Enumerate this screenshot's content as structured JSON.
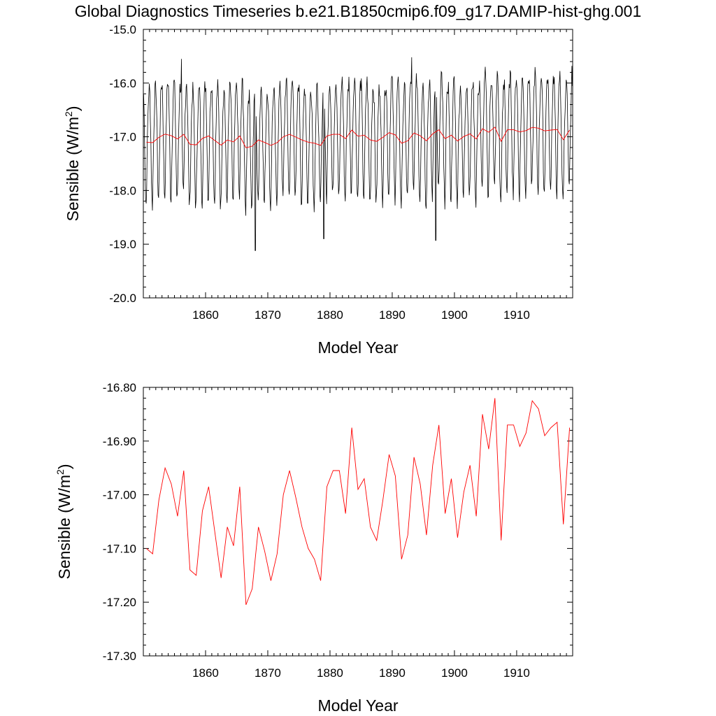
{
  "title": "Global Diagnostics Timeseries b.e21.B1850cmip6.f09_g17.DAMIP-hist-ghg.001",
  "colors": {
    "monthly": "#000000",
    "annual": "#ff0000",
    "axes": "#000000"
  },
  "chart_data": [
    {
      "type": "line",
      "name": "monthly-and-annual",
      "xlabel": "Model Year",
      "ylabel": "Sensible (W/m",
      "ylabel_sup": "2",
      "ylabel_close": ")",
      "xlim": [
        1850,
        1919
      ],
      "ylim": [
        -20.0,
        -15.0
      ],
      "xticks": [
        1860,
        1870,
        1880,
        1890,
        1900,
        1910
      ],
      "xtick_labels": [
        "1860",
        "1870",
        "1880",
        "1890",
        "1900",
        "1910"
      ],
      "yticks": [
        -20.0,
        -19.0,
        -18.0,
        -17.0,
        -16.0,
        -15.0
      ],
      "ytick_labels": [
        "-20.0",
        "-19.0",
        "-18.0",
        "-17.0",
        "-16.0",
        "-15.0"
      ],
      "monthly_series": {
        "color": "#000000",
        "start_year": 1850,
        "monthly_pattern": [
          -16.35,
          -16.7,
          -17.25,
          -17.9,
          -18.35,
          -18.45,
          -18.0,
          -17.4,
          -16.9,
          -16.55,
          -16.3,
          -16.25
        ],
        "notable_extremes": [
          {
            "x": 1856.1,
            "y": -15.55
          },
          {
            "x": 1868.0,
            "y": -19.12
          },
          {
            "x": 1879.0,
            "y": -18.9
          },
          {
            "x": 1893.1,
            "y": -15.52
          },
          {
            "x": 1897.0,
            "y": -18.93
          },
          {
            "x": 1918.9,
            "y": -15.68
          }
        ]
      },
      "annual_series": {
        "color": "#ff0000",
        "x": [
          1850.5,
          1851.5,
          1852.5,
          1853.5,
          1854.5,
          1855.5,
          1856.5,
          1857.5,
          1858.5,
          1859.5,
          1860.5,
          1861.5,
          1862.5,
          1863.5,
          1864.5,
          1865.5,
          1866.5,
          1867.5,
          1868.5,
          1869.5,
          1870.5,
          1871.5,
          1872.5,
          1873.5,
          1874.5,
          1875.5,
          1876.5,
          1877.5,
          1878.5,
          1879.5,
          1880.5,
          1881.5,
          1882.5,
          1883.5,
          1884.5,
          1885.5,
          1886.5,
          1887.5,
          1888.5,
          1889.5,
          1890.5,
          1891.5,
          1892.5,
          1893.5,
          1894.5,
          1895.5,
          1896.5,
          1897.5,
          1898.5,
          1899.5,
          1900.5,
          1901.5,
          1902.5,
          1903.5,
          1904.5,
          1905.5,
          1906.5,
          1907.5,
          1908.5,
          1909.5,
          1910.5,
          1911.5,
          1912.5,
          1913.5,
          1914.5,
          1915.5,
          1916.5,
          1917.5,
          1918.5
        ],
        "y": [
          -17.1,
          -17.11,
          -17.01,
          -16.95,
          -16.98,
          -17.04,
          -16.955,
          -17.14,
          -17.15,
          -17.03,
          -16.985,
          -17.07,
          -17.155,
          -17.06,
          -17.095,
          -16.985,
          -17.205,
          -17.175,
          -17.06,
          -17.105,
          -17.16,
          -17.11,
          -17.0,
          -16.955,
          -17.005,
          -17.06,
          -17.1,
          -17.12,
          -17.16,
          -16.985,
          -16.955,
          -16.955,
          -17.035,
          -16.875,
          -16.99,
          -16.97,
          -17.06,
          -17.085,
          -17.01,
          -16.925,
          -16.965,
          -17.12,
          -17.075,
          -16.93,
          -16.98,
          -17.075,
          -16.945,
          -16.87,
          -17.035,
          -16.97,
          -17.08,
          -16.995,
          -16.945,
          -17.04,
          -16.85,
          -16.915,
          -16.82,
          -17.085,
          -16.87,
          -16.87,
          -16.91,
          -16.885,
          -16.825,
          -16.84,
          -16.89,
          -16.875,
          -16.865,
          -17.055,
          -16.875
        ]
      }
    },
    {
      "type": "line",
      "name": "annual",
      "xlabel": "Model Year",
      "ylabel": "Sensible (W/m",
      "ylabel_sup": "2",
      "ylabel_close": ")",
      "xlim": [
        1850,
        1919
      ],
      "ylim": [
        -17.3,
        -16.8
      ],
      "xticks": [
        1860,
        1870,
        1880,
        1890,
        1900,
        1910
      ],
      "xtick_labels": [
        "1860",
        "1870",
        "1880",
        "1890",
        "1900",
        "1910"
      ],
      "yticks": [
        -17.3,
        -17.2,
        -17.1,
        -17.0,
        -16.9,
        -16.8
      ],
      "ytick_labels": [
        "-17.30",
        "-17.20",
        "-17.10",
        "-17.00",
        "-16.90",
        "-16.80"
      ],
      "series_ref": "annual_series"
    }
  ]
}
